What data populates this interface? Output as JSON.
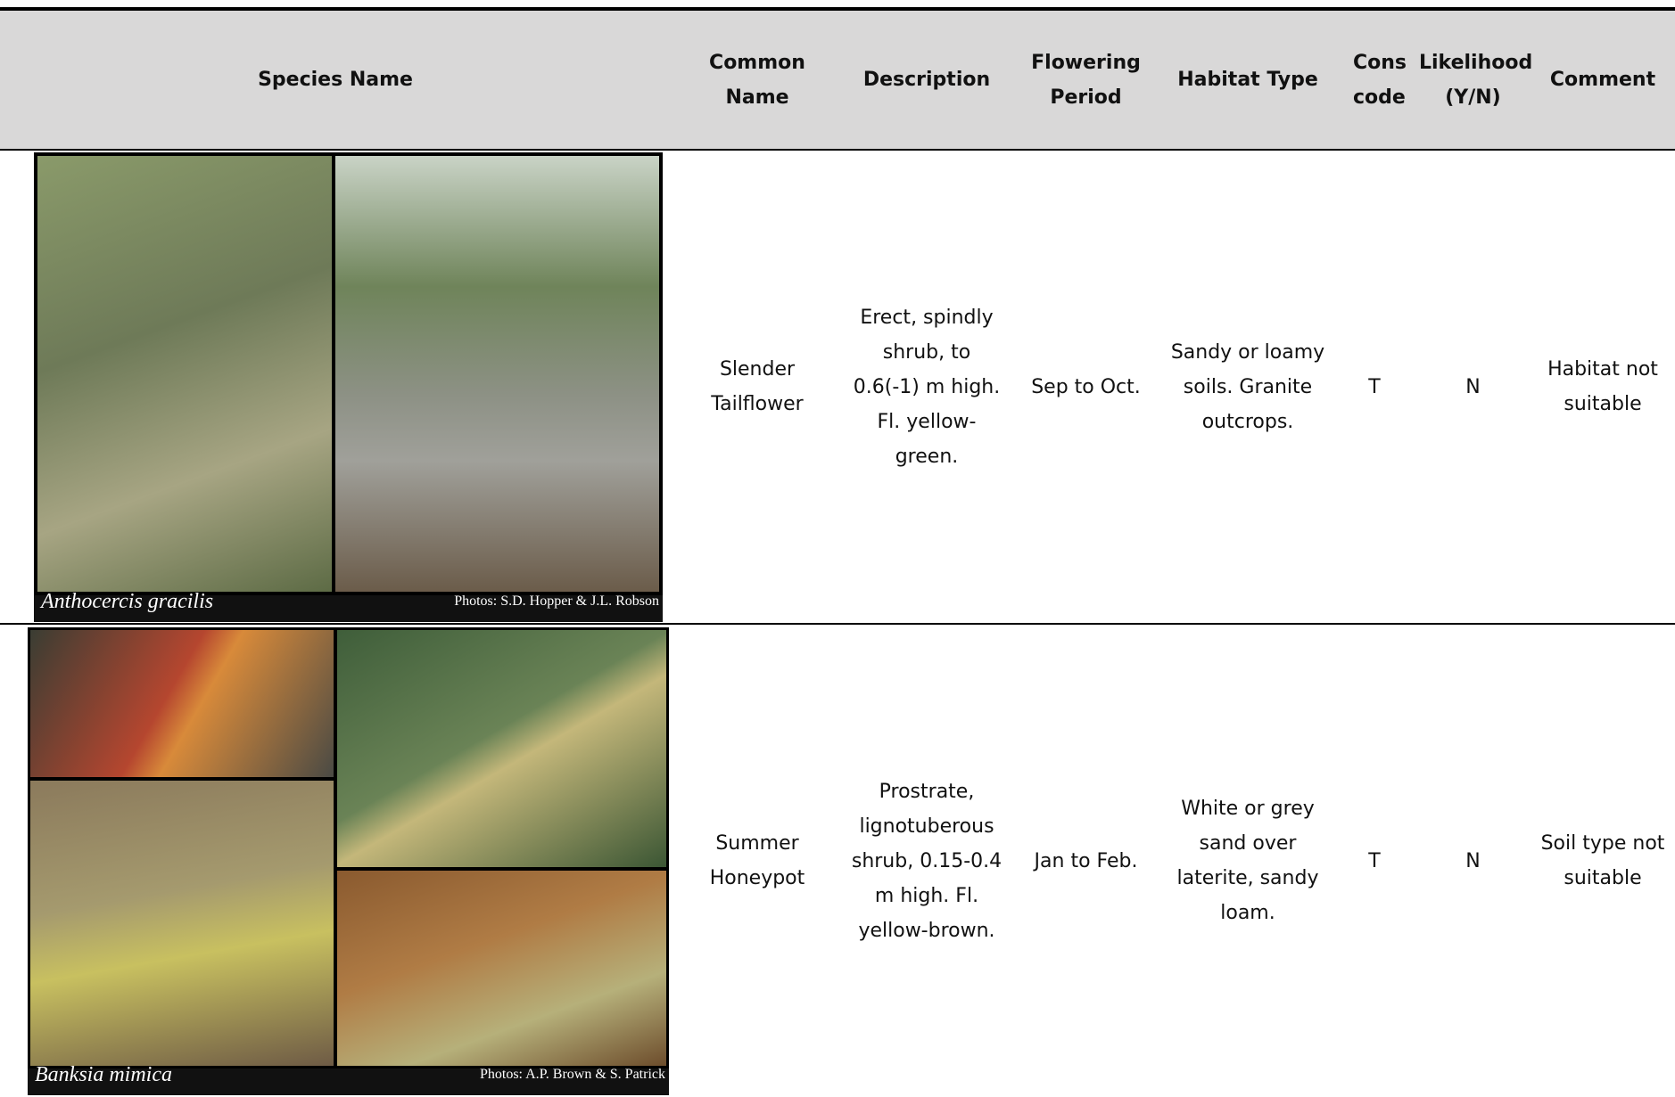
{
  "header": {
    "columns": [
      "Species Name",
      "Common Name",
      "Description",
      "Flowering Period",
      "Habitat Type",
      "Cons code",
      "Likelihood (Y/N)",
      "Comment"
    ]
  },
  "rows": [
    {
      "species": "Anthocercis gracilis",
      "photo_credit": "Photos: S.D. Hopper & J.L. Robson",
      "common_name": "Slender Tailflower",
      "description": "Erect, spindly shrub, to 0.6(-1) m high. Fl. yellow-green.",
      "flowering_period": "Sep to Oct.",
      "habitat_type": "Sandy or loamy soils. Granite outcrops.",
      "cons_code": "T",
      "likelihood": "N",
      "comment": "Habitat not suitable"
    },
    {
      "species": "Banksia mimica",
      "photo_credit": "Photos:  A.P. Brown & S. Patrick",
      "common_name": "Summer Honeypot",
      "description": "Prostrate, lignotuberous shrub, 0.15-0.4 m high. Fl. yellow-brown.",
      "flowering_period": "Jan to Feb.",
      "habitat_type": "White or grey sand over laterite, sandy loam.",
      "cons_code": "T",
      "likelihood": "N",
      "comment": "Soil type not suitable"
    }
  ]
}
